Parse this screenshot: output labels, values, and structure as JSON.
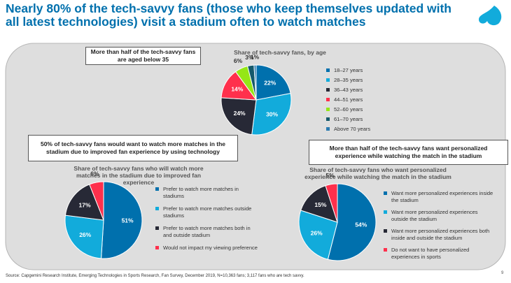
{
  "header": {
    "title": "Nearly 80% of the tech-savvy fans (those who keep themselves updated with all latest technologies) visit a stadium often to watch matches"
  },
  "chart_data": [
    {
      "type": "pie",
      "title": "Share of tech-savvy fans, by age",
      "annotation": "More than half of the tech-savvy fans are aged below 35",
      "categories": [
        "18–27 years",
        "28–35 years",
        "36–43 years",
        "44–51 years",
        "52–60 years",
        "61–70 years",
        "Above 70 years"
      ],
      "values": [
        22,
        30,
        24,
        14,
        6,
        3,
        1
      ],
      "value_labels": [
        "22%",
        "30%",
        "24%",
        "14%",
        "6%",
        "3%",
        "1%"
      ],
      "colors": [
        "#0070ad",
        "#12abdb",
        "#272936",
        "#ff304c",
        "#95e616",
        "#14596b",
        "#2b7bb0"
      ]
    },
    {
      "type": "pie",
      "title": "Share of tech-savvy fans who will watch more matches in the stadium due to improved fan experience",
      "annotation": "50% of tech-savvy fans would want to watch more matches in the stadium due to improved fan experience by using technology",
      "categories": [
        "Prefer to watch more matches in stadiums",
        "Prefer to watch more matches outside stadiums",
        "Prefer to watch more matches both in and outside stadium",
        "Would not impact my viewing preference"
      ],
      "values": [
        51,
        26,
        17,
        6
      ],
      "value_labels": [
        "51%",
        "26%",
        "17%",
        "6%"
      ],
      "colors": [
        "#0070ad",
        "#12abdb",
        "#272936",
        "#ff304c"
      ]
    },
    {
      "type": "pie",
      "title": "Share of tech-savvy fans who want personalized experience while watching the match in the stadium",
      "annotation": "More than half of the tech-savvy fans want personalized experience while watching the match in the stadium",
      "categories": [
        "Want more personalized experiences inside the stadium",
        "Want more personalized experiences outside the stadium",
        "Want more personalized experiences both inside and outside the stadium",
        "Do not want to have personalized experiences in sports"
      ],
      "values": [
        54,
        26,
        15,
        5
      ],
      "value_labels": [
        "54%",
        "26%",
        "15%",
        "5%"
      ],
      "colors": [
        "#0070ad",
        "#12abdb",
        "#272936",
        "#ff304c"
      ]
    }
  ],
  "footer": {
    "source": "Source: Capgemini Research Institute, Emerging Technologies in Sports Research, Fan Survey, December 2019, N=10,363 fans; 3,117 fans who are tech savvy.",
    "page": "9"
  }
}
